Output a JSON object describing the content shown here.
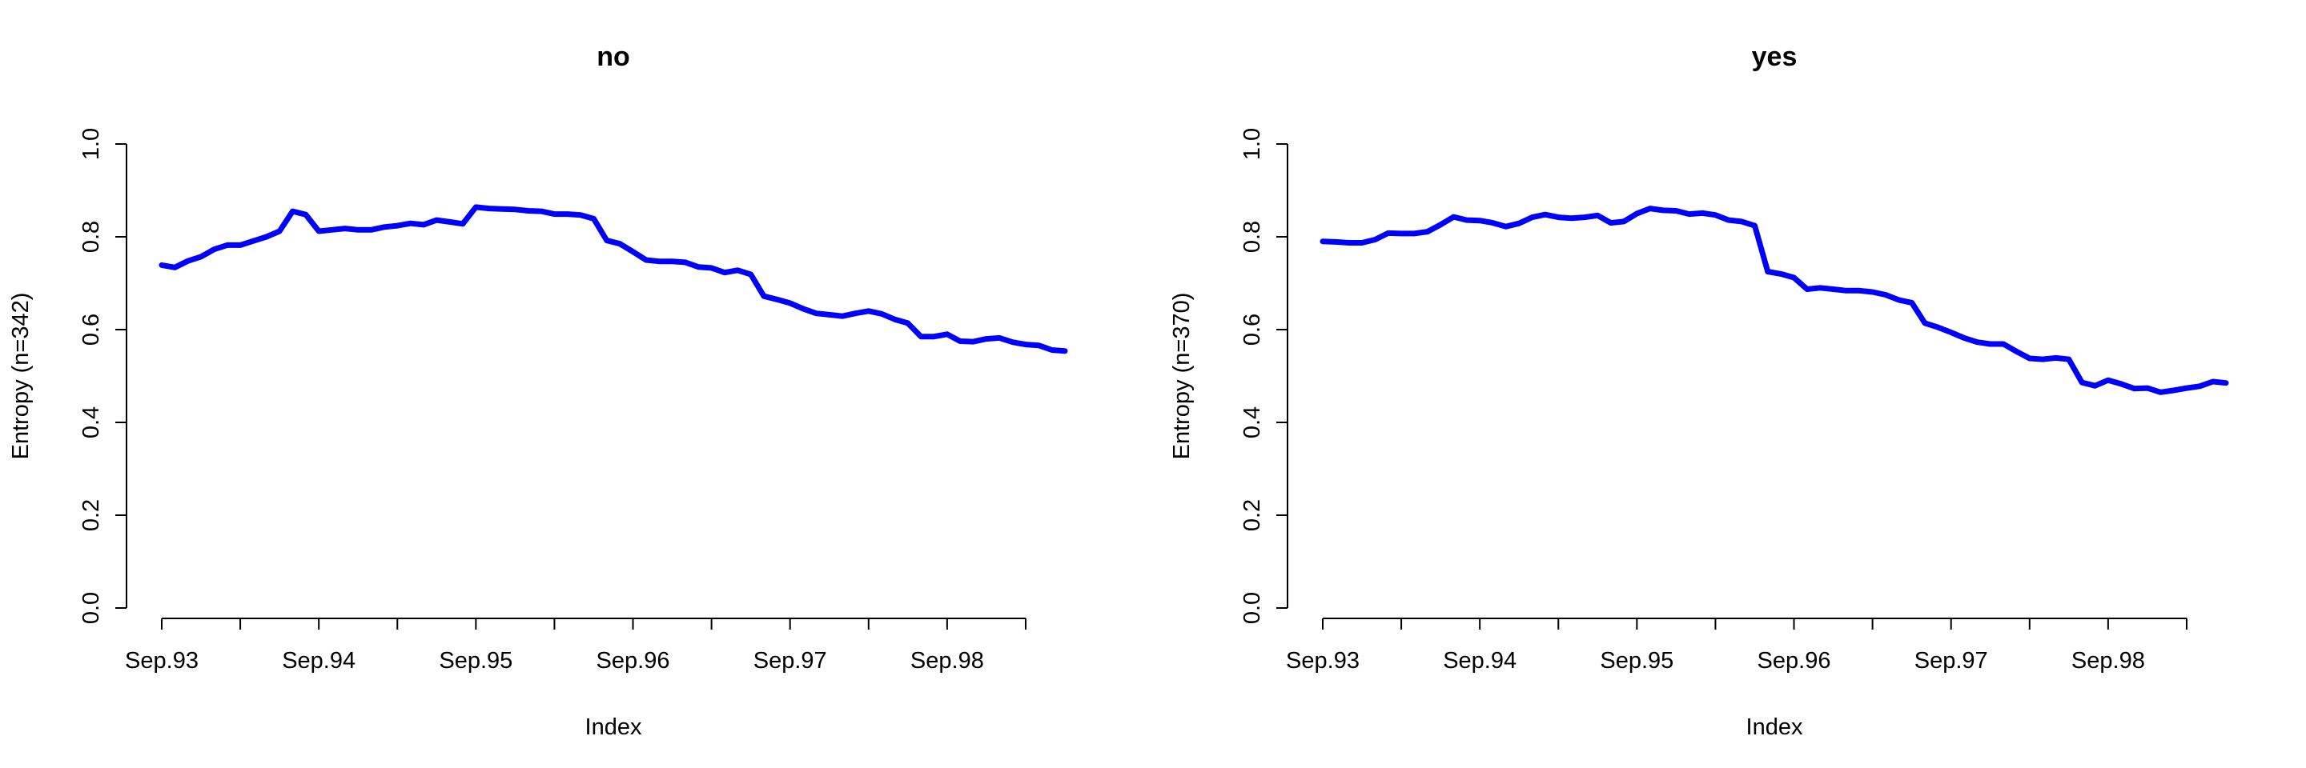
{
  "colors": {
    "series": "#0000ff",
    "axis": "#000000",
    "background": "#ffffff"
  },
  "chart_data": [
    {
      "type": "line",
      "title": "no",
      "xlabel": "Index",
      "ylabel": "Entropy (n=342)",
      "xticks": [
        "Sep.93",
        "Sep.94",
        "Sep.95",
        "Sep.96",
        "Sep.97",
        "Sep.98"
      ],
      "yticks": [
        "0.0",
        "0.2",
        "0.4",
        "0.6",
        "0.8",
        "1.0"
      ],
      "ylim": [
        0,
        1
      ],
      "xlim_months": [
        "Sep.93",
        "Apr.99"
      ],
      "grid": false,
      "series": [
        {
          "values": [
            0.739,
            0.734,
            0.748,
            0.757,
            0.773,
            0.782,
            0.782,
            0.791,
            0.8,
            0.812,
            0.855,
            0.848,
            0.812,
            0.815,
            0.818,
            0.815,
            0.815,
            0.821,
            0.824,
            0.829,
            0.826,
            0.836,
            0.832,
            0.828,
            0.864,
            0.861,
            0.86,
            0.859,
            0.856,
            0.855,
            0.849,
            0.849,
            0.847,
            0.839,
            0.792,
            0.785,
            0.768,
            0.75,
            0.747,
            0.747,
            0.745,
            0.735,
            0.733,
            0.723,
            0.728,
            0.719,
            0.672,
            0.665,
            0.657,
            0.645,
            0.635,
            0.632,
            0.629,
            0.635,
            0.64,
            0.634,
            0.622,
            0.614,
            0.585,
            0.585,
            0.59,
            0.575,
            0.574,
            0.58,
            0.582,
            0.573,
            0.568,
            0.566,
            0.556,
            0.554
          ]
        }
      ]
    },
    {
      "type": "line",
      "title": "yes",
      "xlabel": "Index",
      "ylabel": "Entropy (n=370)",
      "xticks": [
        "Sep.93",
        "Sep.94",
        "Sep.95",
        "Sep.96",
        "Sep.97",
        "Sep.98"
      ],
      "yticks": [
        "0.0",
        "0.2",
        "0.4",
        "0.6",
        "0.8",
        "1.0"
      ],
      "ylim": [
        0,
        1
      ],
      "xlim_months": [
        "Sep.93",
        "Apr.99"
      ],
      "grid": false,
      "series": [
        {
          "values": [
            0.79,
            0.789,
            0.787,
            0.787,
            0.794,
            0.808,
            0.807,
            0.807,
            0.811,
            0.826,
            0.843,
            0.836,
            0.835,
            0.83,
            0.822,
            0.829,
            0.842,
            0.848,
            0.842,
            0.84,
            0.842,
            0.846,
            0.83,
            0.833,
            0.85,
            0.861,
            0.857,
            0.856,
            0.849,
            0.851,
            0.847,
            0.836,
            0.833,
            0.824,
            0.725,
            0.72,
            0.712,
            0.687,
            0.69,
            0.687,
            0.684,
            0.684,
            0.681,
            0.675,
            0.664,
            0.658,
            0.614,
            0.605,
            0.594,
            0.582,
            0.573,
            0.569,
            0.569,
            0.553,
            0.538,
            0.536,
            0.539,
            0.536,
            0.486,
            0.479,
            0.491,
            0.483,
            0.473,
            0.474,
            0.465,
            0.469,
            0.474,
            0.478,
            0.488,
            0.485
          ]
        }
      ]
    }
  ]
}
